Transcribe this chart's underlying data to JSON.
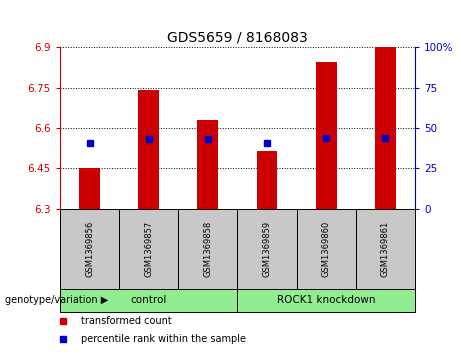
{
  "title": "GDS5659 / 8168083",
  "samples": [
    "GSM1369856",
    "GSM1369857",
    "GSM1369858",
    "GSM1369859",
    "GSM1369860",
    "GSM1369861"
  ],
  "red_bar_tops": [
    6.45,
    6.74,
    6.63,
    6.515,
    6.845,
    6.9
  ],
  "blue_sq_vals": [
    6.543,
    6.558,
    6.558,
    6.543,
    6.562,
    6.562
  ],
  "bar_baseline": 6.3,
  "ylim_left": [
    6.3,
    6.9
  ],
  "ylim_right": [
    0,
    100
  ],
  "yticks_left": [
    6.3,
    6.45,
    6.6,
    6.75,
    6.9
  ],
  "yticks_right": [
    0,
    25,
    50,
    75,
    100
  ],
  "group_label_prefix": "genotype/variation",
  "group_labels": [
    "control",
    "ROCK1 knockdown"
  ],
  "group_starts": [
    0,
    3
  ],
  "group_sizes": [
    3,
    3
  ],
  "green_color": "#90EE90",
  "gray_color": "#C8C8C8",
  "red_color": "#CC0000",
  "blue_color": "#0000CC",
  "bar_width": 0.35,
  "left_axis_color": "#CC0000",
  "right_axis_color": "#0000CC",
  "legend_red_label": "transformed count",
  "legend_blue_label": "percentile rank within the sample"
}
